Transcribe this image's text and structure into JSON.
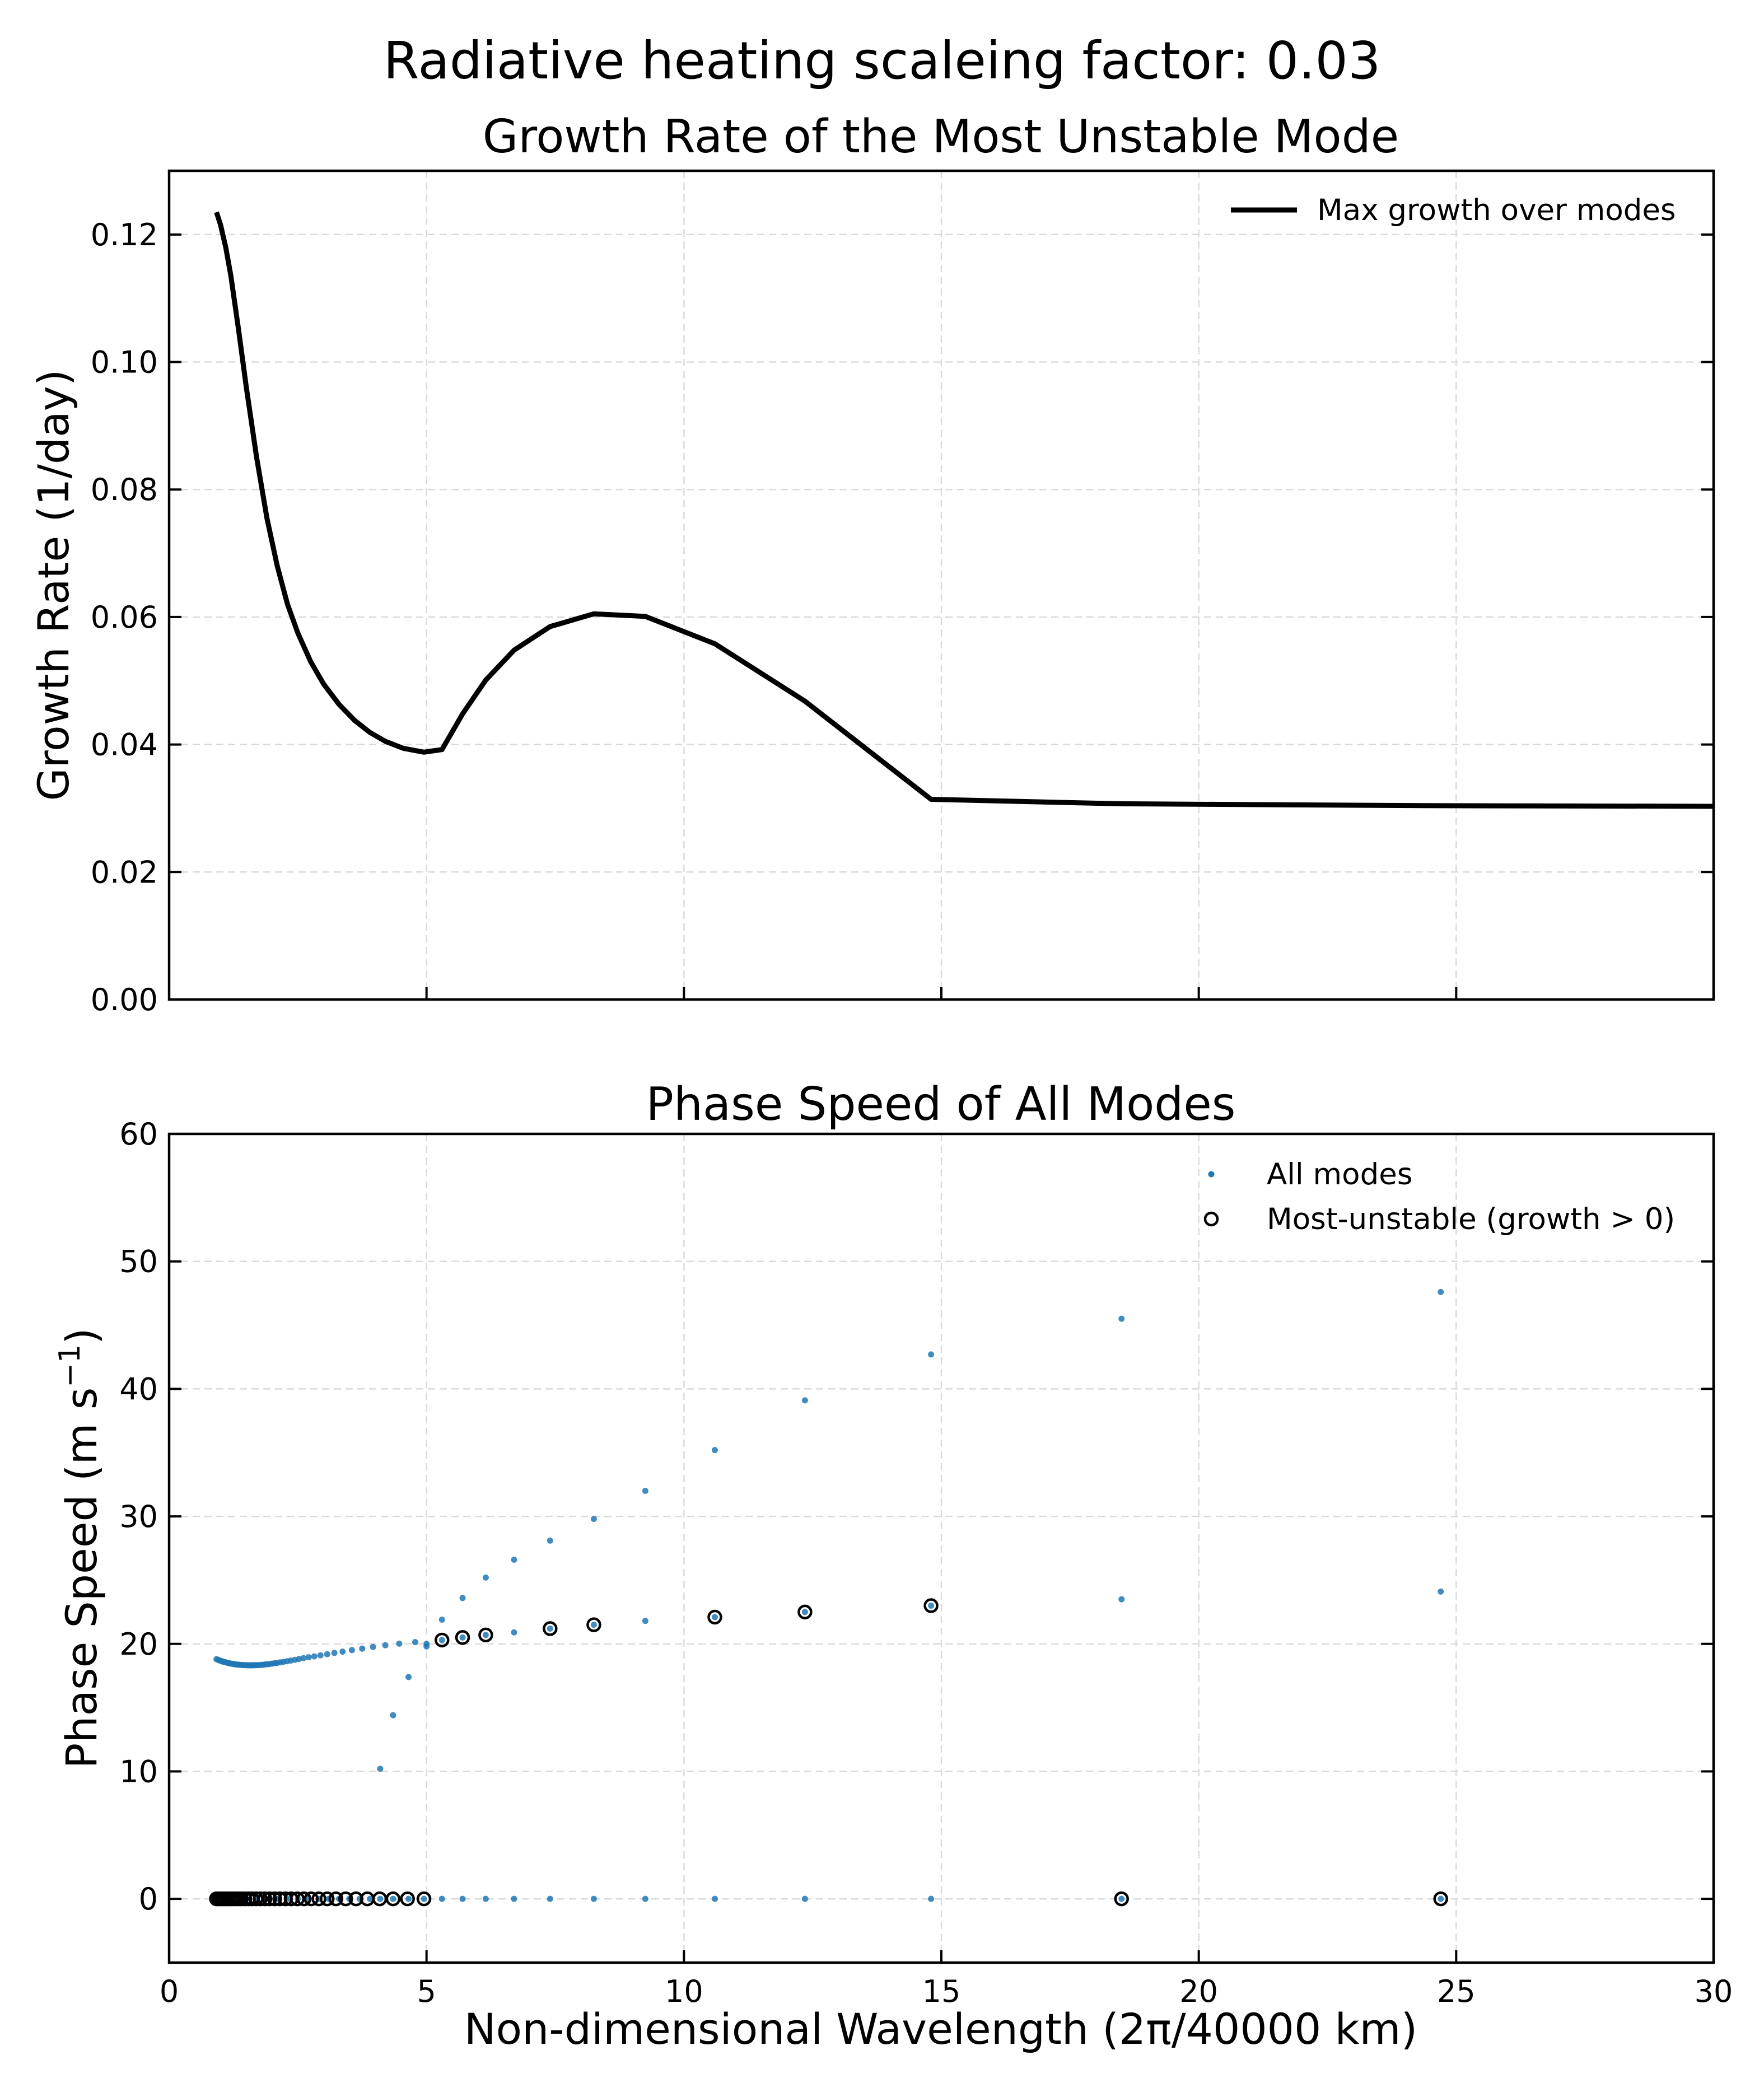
{
  "figure": {
    "suptitle": "Radiative heating scaleing factor: 0.03"
  },
  "chart_data": [
    {
      "type": "line",
      "title": "Growth Rate of the Most Unstable Mode",
      "xlabel": "",
      "ylabel": "Growth Rate (1/day)",
      "xlim": [
        0,
        30
      ],
      "ylim": [
        0,
        0.13
      ],
      "xticks": [
        0,
        5,
        10,
        15,
        20,
        25,
        30
      ],
      "xtick_labels_visible": false,
      "yticks": [
        0.0,
        0.02,
        0.04,
        0.06,
        0.08,
        0.1,
        0.12
      ],
      "ytick_labels": [
        "0.00",
        "0.02",
        "0.04",
        "0.06",
        "0.08",
        "0.10",
        "0.12"
      ],
      "grid": true,
      "legend_position": "top-right",
      "series": [
        {
          "name": "Max growth over modes",
          "color": "#000000",
          "x": [
            0.92,
            1.0,
            1.1,
            1.2,
            1.35,
            1.5,
            1.7,
            1.9,
            2.1,
            2.3,
            2.5,
            2.75,
            3.0,
            3.3,
            3.6,
            3.9,
            4.2,
            4.55,
            4.95,
            5.3,
            5.7,
            6.15,
            6.7,
            7.4,
            8.25,
            9.25,
            10.6,
            12.35,
            14.8,
            18.5,
            24.7,
            30.0
          ],
          "y": [
            0.1235,
            0.1215,
            0.118,
            0.1135,
            0.105,
            0.096,
            0.085,
            0.0755,
            0.068,
            0.062,
            0.0575,
            0.053,
            0.0495,
            0.0463,
            0.0438,
            0.0419,
            0.0405,
            0.0394,
            0.0388,
            0.0392,
            0.0448,
            0.0501,
            0.0548,
            0.0585,
            0.0605,
            0.0601,
            0.0558,
            0.0468,
            0.0314,
            0.0307,
            0.0304,
            0.0303
          ]
        }
      ]
    },
    {
      "type": "scatter",
      "title": "Phase Speed of All Modes",
      "xlabel": "Non-dimensional Wavelength (2π/40000 km)",
      "ylabel_main": "Phase Speed (m s",
      "ylabel_sup": "−1",
      "ylabel_close": ")",
      "xlim": [
        0,
        30
      ],
      "ylim": [
        -5,
        60
      ],
      "xticks": [
        0,
        5,
        10,
        15,
        20,
        25,
        30
      ],
      "xtick_labels": [
        "0",
        "5",
        "10",
        "15",
        "20",
        "25",
        "30"
      ],
      "yticks": [
        0,
        10,
        20,
        30,
        40,
        50,
        60
      ],
      "ytick_labels": [
        "0",
        "10",
        "20",
        "30",
        "40",
        "50",
        "60"
      ],
      "grid": true,
      "legend_position": "top-right",
      "series": [
        {
          "name": "All modes",
          "color": "#1f77b4",
          "marker": "dot",
          "points": [
            [
              0.92,
              18.8
            ],
            [
              0.95,
              18.75
            ],
            [
              0.98,
              18.7
            ],
            [
              1.01,
              18.66
            ],
            [
              1.04,
              18.62
            ],
            [
              1.07,
              18.58
            ],
            [
              1.1,
              18.55
            ],
            [
              1.13,
              18.52
            ],
            [
              1.16,
              18.49
            ],
            [
              1.19,
              18.46
            ],
            [
              1.22,
              18.44
            ],
            [
              1.25,
              18.42
            ],
            [
              1.28,
              18.4
            ],
            [
              1.31,
              18.38
            ],
            [
              1.34,
              18.37
            ],
            [
              1.37,
              18.36
            ],
            [
              1.4,
              18.35
            ],
            [
              1.43,
              18.34
            ],
            [
              1.46,
              18.33
            ],
            [
              1.49,
              18.33
            ],
            [
              1.52,
              18.32
            ],
            [
              1.55,
              18.32
            ],
            [
              1.58,
              18.32
            ],
            [
              1.61,
              18.32
            ],
            [
              1.64,
              18.32
            ],
            [
              1.67,
              18.33
            ],
            [
              1.7,
              18.33
            ],
            [
              1.74,
              18.34
            ],
            [
              1.78,
              18.35
            ],
            [
              1.82,
              18.36
            ],
            [
              1.86,
              18.38
            ],
            [
              1.9,
              18.4
            ],
            [
              1.95,
              18.42
            ],
            [
              2.0,
              18.45
            ],
            [
              2.05,
              18.48
            ],
            [
              2.1,
              18.51
            ],
            [
              2.16,
              18.55
            ],
            [
              2.22,
              18.59
            ],
            [
              2.29,
              18.64
            ],
            [
              2.36,
              18.69
            ],
            [
              2.44,
              18.75
            ],
            [
              2.52,
              18.81
            ],
            [
              2.61,
              18.88
            ],
            [
              2.71,
              18.95
            ],
            [
              2.82,
              19.02
            ],
            [
              2.94,
              19.1
            ],
            [
              3.07,
              19.19
            ],
            [
              3.21,
              19.29
            ],
            [
              3.37,
              19.39
            ],
            [
              3.55,
              19.51
            ],
            [
              3.75,
              19.63
            ],
            [
              3.96,
              19.76
            ],
            [
              4.2,
              19.89
            ],
            [
              4.47,
              20.02
            ],
            [
              4.78,
              20.14
            ],
            [
              5.0,
              20.0
            ],
            [
              5.0,
              19.8
            ],
            [
              4.1,
              10.2
            ],
            [
              4.35,
              14.4
            ],
            [
              4.65,
              17.4
            ],
            [
              5.3,
              21.9
            ],
            [
              5.7,
              23.6
            ],
            [
              6.15,
              25.2
            ],
            [
              6.7,
              26.6
            ],
            [
              7.4,
              28.1
            ],
            [
              8.25,
              29.8
            ],
            [
              9.25,
              32.0
            ],
            [
              10.6,
              35.2
            ],
            [
              12.35,
              39.1
            ],
            [
              14.8,
              42.7
            ],
            [
              18.5,
              45.5
            ],
            [
              24.7,
              47.6
            ],
            [
              5.3,
              20.3
            ],
            [
              5.7,
              20.5
            ],
            [
              6.15,
              20.7
            ],
            [
              6.7,
              20.9
            ],
            [
              7.4,
              21.2
            ],
            [
              8.25,
              21.5
            ],
            [
              9.25,
              21.8
            ],
            [
              10.6,
              22.1
            ],
            [
              12.35,
              22.5
            ],
            [
              14.8,
              23.0
            ],
            [
              18.5,
              23.5
            ],
            [
              24.7,
              24.1
            ],
            [
              0.92,
              0
            ],
            [
              1.1,
              0
            ],
            [
              1.3,
              0
            ],
            [
              1.5,
              0
            ],
            [
              1.7,
              0
            ],
            [
              1.9,
              0
            ],
            [
              2.1,
              0
            ],
            [
              2.3,
              0
            ],
            [
              2.5,
              0
            ],
            [
              2.7,
              0
            ],
            [
              2.9,
              0
            ],
            [
              3.1,
              0
            ],
            [
              3.3,
              0
            ],
            [
              3.5,
              0
            ],
            [
              3.7,
              0
            ],
            [
              3.9,
              0
            ],
            [
              4.1,
              0
            ],
            [
              4.35,
              0
            ],
            [
              4.65,
              0
            ],
            [
              4.95,
              0
            ],
            [
              5.3,
              0
            ],
            [
              5.7,
              0
            ],
            [
              6.15,
              0
            ],
            [
              6.7,
              0
            ],
            [
              7.4,
              0
            ],
            [
              8.25,
              0
            ],
            [
              9.25,
              0
            ],
            [
              10.6,
              0
            ],
            [
              12.35,
              0
            ],
            [
              14.8,
              0
            ],
            [
              18.5,
              0
            ],
            [
              24.7,
              0
            ]
          ]
        },
        {
          "name": "Most-unstable (growth > 0)",
          "color": "#000000",
          "marker": "open-circle",
          "points": [
            [
              0.92,
              0
            ],
            [
              0.97,
              0
            ],
            [
              1.02,
              0
            ],
            [
              1.07,
              0
            ],
            [
              1.12,
              0
            ],
            [
              1.17,
              0
            ],
            [
              1.22,
              0
            ],
            [
              1.28,
              0
            ],
            [
              1.34,
              0
            ],
            [
              1.4,
              0
            ],
            [
              1.47,
              0
            ],
            [
              1.54,
              0
            ],
            [
              1.61,
              0
            ],
            [
              1.69,
              0
            ],
            [
              1.77,
              0
            ],
            [
              1.86,
              0
            ],
            [
              1.95,
              0
            ],
            [
              2.05,
              0
            ],
            [
              2.15,
              0
            ],
            [
              2.26,
              0
            ],
            [
              2.37,
              0
            ],
            [
              2.49,
              0
            ],
            [
              2.62,
              0
            ],
            [
              2.76,
              0
            ],
            [
              2.91,
              0
            ],
            [
              3.07,
              0
            ],
            [
              3.24,
              0
            ],
            [
              3.43,
              0
            ],
            [
              3.63,
              0
            ],
            [
              3.85,
              0
            ],
            [
              4.09,
              0
            ],
            [
              4.35,
              0
            ],
            [
              4.63,
              0
            ],
            [
              4.95,
              0
            ],
            [
              5.3,
              20.3
            ],
            [
              5.7,
              20.5
            ],
            [
              6.15,
              20.7
            ],
            [
              7.4,
              21.2
            ],
            [
              8.25,
              21.5
            ],
            [
              10.6,
              22.1
            ],
            [
              12.35,
              22.5
            ],
            [
              14.8,
              23.0
            ],
            [
              18.5,
              0
            ],
            [
              24.7,
              0
            ]
          ]
        }
      ]
    }
  ]
}
